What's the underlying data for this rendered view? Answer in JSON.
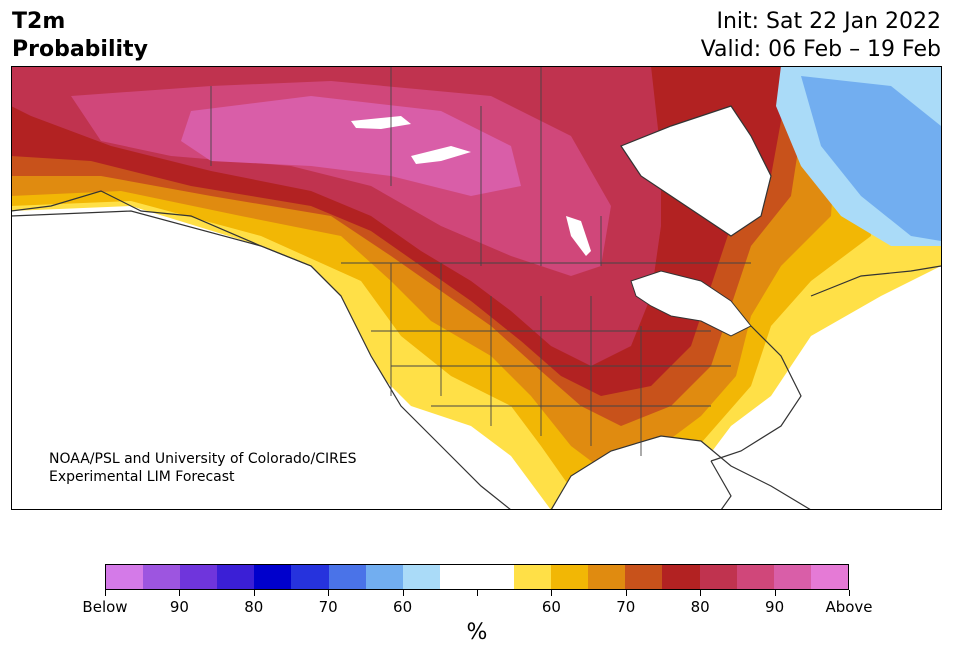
{
  "title": {
    "line1": "T2m",
    "line2": "Probability"
  },
  "dates": {
    "init": "Init: Sat 22 Jan 2022",
    "valid": "Valid: 06 Feb – 19 Feb"
  },
  "credit": {
    "line1": "NOAA/PSL and University of Colorado/CIRES",
    "line2": "Experimental LIM Forecast"
  },
  "legend": {
    "colors": [
      "#d47ae8",
      "#9d55e0",
      "#6f35dc",
      "#3b1fd6",
      "#0000cc",
      "#2633dd",
      "#4a73e8",
      "#72aef0",
      "#aadbf8",
      "#ffffff",
      "#ffffff",
      "#ffe047",
      "#f2b705",
      "#e08b10",
      "#c8521b",
      "#b22222",
      "#c0334f",
      "#d0477a",
      "#d95ea8",
      "#e57ad6"
    ],
    "ticks": [
      {
        "label": "Below",
        "pos": 0
      },
      {
        "label": "90",
        "pos": 2
      },
      {
        "label": "80",
        "pos": 4
      },
      {
        "label": "70",
        "pos": 6
      },
      {
        "label": "60",
        "pos": 8
      },
      {
        "label": "",
        "pos": 10
      },
      {
        "label": "60",
        "pos": 12
      },
      {
        "label": "70",
        "pos": 14
      },
      {
        "label": "80",
        "pos": 16
      },
      {
        "label": "90",
        "pos": 18
      },
      {
        "label": "Above",
        "pos": 20
      }
    ],
    "unit": "%"
  },
  "map": {
    "colors": {
      "above90": "#d95ea8",
      "above80": "#c0334f",
      "above70": "#b22222",
      "above65": "#c8521b",
      "above60": "#e08b10",
      "above55": "#f2b705",
      "above50": "#ffe047",
      "below60": "#aadbf8",
      "below70": "#72aef0",
      "border": "#333333",
      "ice": "#ffffff"
    }
  }
}
